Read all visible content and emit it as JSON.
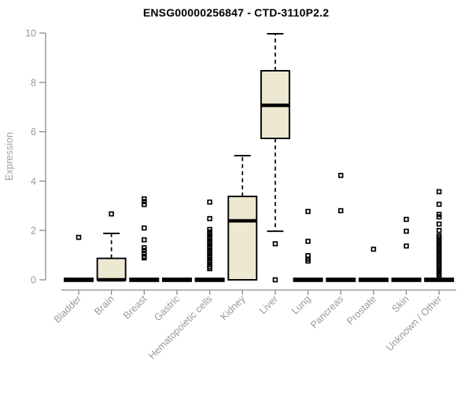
{
  "chart_data": {
    "type": "boxplot",
    "title": "ENSG00000256847 - CTD-3110P2.2",
    "xlabel": "",
    "ylabel": "Expression",
    "ylim": [
      0,
      10
    ],
    "yticks": [
      0,
      2,
      4,
      6,
      8,
      10
    ],
    "grid": false,
    "legend": "none",
    "categories": [
      "Bladder",
      "Brain",
      "Breast",
      "Gastric",
      "Hematopoietic cells",
      "Kidney",
      "Liver",
      "Lung",
      "Pancreas",
      "Prostate",
      "Skin",
      "Unknown / Other"
    ],
    "boxes": [
      {
        "category": "Bladder",
        "min": 0,
        "q1": 0,
        "median": 0,
        "q3": 0,
        "max": 0,
        "outliers": [
          1.72
        ]
      },
      {
        "category": "Brain",
        "min": 0,
        "q1": 0,
        "median": 0,
        "q3": 0.87,
        "max": 1.88,
        "outliers": [
          2.67
        ]
      },
      {
        "category": "Breast",
        "min": 0,
        "q1": 0,
        "median": 0,
        "q3": 0,
        "max": 0,
        "outliers": [
          3.28,
          3.17,
          3.05,
          2.1,
          1.62,
          1.3,
          1.19,
          1.07,
          0.95,
          0.89
        ]
      },
      {
        "category": "Gastric",
        "min": 0,
        "q1": 0,
        "median": 0,
        "q3": 0,
        "max": 0,
        "outliers": []
      },
      {
        "category": "Hematopoietic cells",
        "min": 0,
        "q1": 0,
        "median": 0,
        "q3": 0,
        "max": 0,
        "outliers": [
          3.15,
          2.48,
          2.04,
          1.94,
          1.85,
          1.75,
          1.66,
          1.56,
          1.47,
          1.37,
          1.28,
          1.18,
          1.09,
          0.99,
          0.9,
          0.8,
          0.71,
          0.61,
          0.52,
          0.45
        ]
      },
      {
        "category": "Kidney",
        "min": 0,
        "q1": 0,
        "median": 2.39,
        "q3": 3.38,
        "max": 5.03,
        "outliers": []
      },
      {
        "category": "Liver",
        "min": 1.97,
        "q1": 5.73,
        "median": 7.07,
        "q3": 8.47,
        "max": 9.97,
        "outliers": [
          1.46,
          0
        ]
      },
      {
        "category": "Lung",
        "min": 0,
        "q1": 0,
        "median": 0,
        "q3": 0,
        "max": 0,
        "outliers": [
          2.77,
          1.56,
          0.98,
          0.84,
          0.76
        ]
      },
      {
        "category": "Pancreas",
        "min": 0,
        "q1": 0,
        "median": 0,
        "q3": 0,
        "max": 0,
        "outliers": [
          4.23,
          2.8
        ]
      },
      {
        "category": "Prostate",
        "min": 0,
        "q1": 0,
        "median": 0,
        "q3": 0,
        "max": 0,
        "outliers": [
          1.24
        ]
      },
      {
        "category": "Skin",
        "min": 0,
        "q1": 0,
        "median": 0,
        "q3": 0,
        "max": 0,
        "outliers": [
          2.45,
          1.97,
          1.37
        ]
      },
      {
        "category": "Unknown / Other",
        "min": 0,
        "q1": 0,
        "median": 0,
        "q3": 0,
        "max": 0,
        "outliers": [
          3.57,
          3.06,
          2.65,
          2.55,
          2.26,
          2.0,
          1.78,
          1.71,
          1.64,
          1.57,
          1.5,
          1.43,
          1.36,
          1.29,
          1.22,
          1.15,
          1.08,
          1.01,
          0.94,
          0.87,
          0.8,
          0.73,
          0.66,
          0.59,
          0.52,
          0.45,
          0.38,
          0.31,
          0.25,
          0.19
        ]
      }
    ],
    "colors": {
      "box_fill": "#EDE8D1",
      "box_border": "#000000",
      "median": "#000000",
      "whisker": "#000000",
      "outlier": "#000000",
      "axis": "#8C8C8C",
      "tick_label": "#999999",
      "axis_title": "#A0A0A0",
      "title": "#000000",
      "background": "#FFFFFF"
    }
  }
}
